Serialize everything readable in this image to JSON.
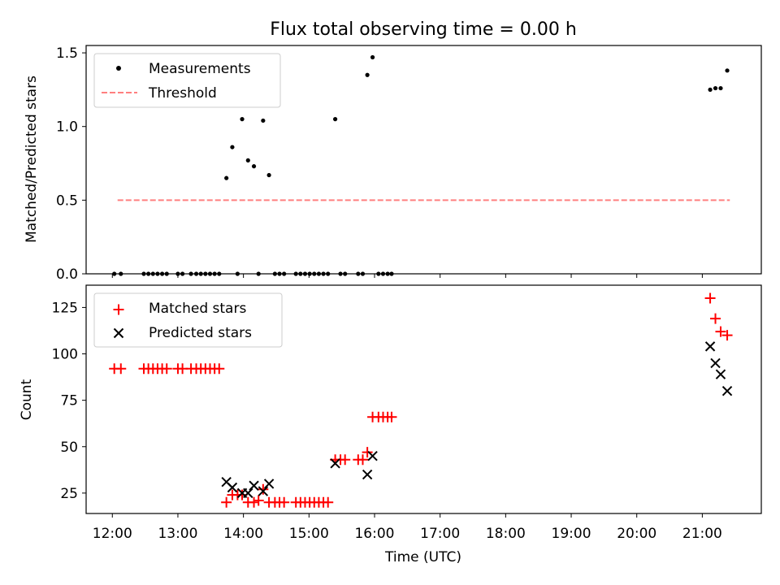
{
  "title": "Flux total observing time = 0.00 h",
  "xlabel": "Time (UTC)",
  "colors": {
    "measurement": "#000000",
    "threshold": "#ff7f7f",
    "matched": "#ff0000",
    "predicted": "#000000"
  },
  "chart_data": [
    {
      "type": "scatter",
      "title": "Flux total observing time = 0.00 h",
      "ylabel": "Matched/Predicted stars",
      "xlim": [
        11.6,
        21.9
      ],
      "ylim": [
        0,
        1.55
      ],
      "yticks": [
        0.0,
        0.5,
        1.0,
        1.5
      ],
      "ytick_labels": [
        "0.0",
        "0.5",
        "1.0",
        "1.5"
      ],
      "legend": {
        "position": "top-left",
        "entries": [
          "Measurements",
          "Threshold"
        ]
      },
      "series": [
        {
          "name": "Measurements",
          "marker": "dot",
          "x": [
            12.03,
            12.13,
            12.48,
            12.55,
            12.62,
            12.69,
            12.76,
            12.83,
            13.0,
            13.07,
            13.2,
            13.28,
            13.35,
            13.42,
            13.49,
            13.56,
            13.63,
            13.74,
            13.83,
            13.91,
            13.98,
            14.07,
            14.16,
            14.23,
            14.3,
            14.39,
            14.48,
            14.55,
            14.62,
            14.8,
            14.87,
            14.94,
            15.01,
            15.08,
            15.15,
            15.22,
            15.29,
            15.4,
            15.48,
            15.55,
            15.75,
            15.82,
            15.89,
            15.97,
            16.06,
            16.13,
            16.2,
            16.26,
            21.12,
            21.2,
            21.28,
            21.38
          ],
          "y": [
            0,
            0,
            0,
            0,
            0,
            0,
            0,
            0,
            0,
            0,
            0,
            0,
            0,
            0,
            0,
            0,
            0,
            0.65,
            0.86,
            0,
            1.05,
            0.77,
            0.73,
            0,
            1.04,
            0.67,
            0,
            0,
            0,
            0,
            0,
            0,
            0,
            0,
            0,
            0,
            0,
            1.05,
            0,
            0,
            0,
            0,
            1.35,
            1.47,
            0,
            0,
            0,
            0,
            1.25,
            1.26,
            1.26,
            1.38
          ]
        },
        {
          "name": "Threshold",
          "marker": "dashed-line",
          "x": [
            12.08,
            21.42
          ],
          "y": [
            0.5,
            0.5
          ]
        }
      ]
    },
    {
      "type": "scatter",
      "ylabel": "Count",
      "xlabel": "Time (UTC)",
      "xlim": [
        11.6,
        21.9
      ],
      "ylim": [
        14,
        137
      ],
      "yticks": [
        25,
        50,
        75,
        100,
        125
      ],
      "ytick_labels": [
        "25",
        "50",
        "75",
        "100",
        "125"
      ],
      "xticks": [
        12,
        13,
        14,
        15,
        16,
        17,
        18,
        19,
        20,
        21
      ],
      "xtick_labels": [
        "12:00",
        "13:00",
        "14:00",
        "15:00",
        "16:00",
        "17:00",
        "18:00",
        "19:00",
        "20:00",
        "21:00"
      ],
      "legend": {
        "position": "top-left",
        "entries": [
          "Matched stars",
          "Predicted stars"
        ]
      },
      "series": [
        {
          "name": "Matched stars",
          "marker": "plus",
          "x": [
            12.03,
            12.13,
            12.48,
            12.55,
            12.62,
            12.69,
            12.76,
            12.83,
            13.0,
            13.07,
            13.2,
            13.28,
            13.35,
            13.42,
            13.49,
            13.56,
            13.63,
            13.74,
            13.83,
            13.91,
            13.98,
            14.07,
            14.16,
            14.23,
            14.3,
            14.39,
            14.48,
            14.55,
            14.62,
            14.8,
            14.87,
            14.94,
            15.01,
            15.08,
            15.15,
            15.22,
            15.29,
            15.4,
            15.48,
            15.55,
            15.75,
            15.82,
            15.89,
            15.97,
            16.06,
            16.13,
            16.2,
            16.26,
            21.12,
            21.2,
            21.28,
            21.38
          ],
          "y": [
            92,
            92,
            92,
            92,
            92,
            92,
            92,
            92,
            92,
            92,
            92,
            92,
            92,
            92,
            92,
            92,
            92,
            20,
            24,
            24,
            24,
            20,
            20,
            21,
            27,
            20,
            20,
            20,
            20,
            20,
            20,
            20,
            20,
            20,
            20,
            20,
            20,
            43,
            43,
            43,
            43,
            43,
            47,
            66,
            66,
            66,
            66,
            66,
            130,
            119,
            112,
            110
          ]
        },
        {
          "name": "Predicted stars",
          "marker": "x",
          "x": [
            13.74,
            13.83,
            13.98,
            14.07,
            14.16,
            14.3,
            14.39,
            15.4,
            15.89,
            15.97,
            21.12,
            21.2,
            21.28,
            21.38
          ],
          "y": [
            31,
            28,
            25,
            25,
            29,
            26,
            30,
            41,
            35,
            45,
            104,
            95,
            89,
            80
          ]
        }
      ]
    }
  ]
}
